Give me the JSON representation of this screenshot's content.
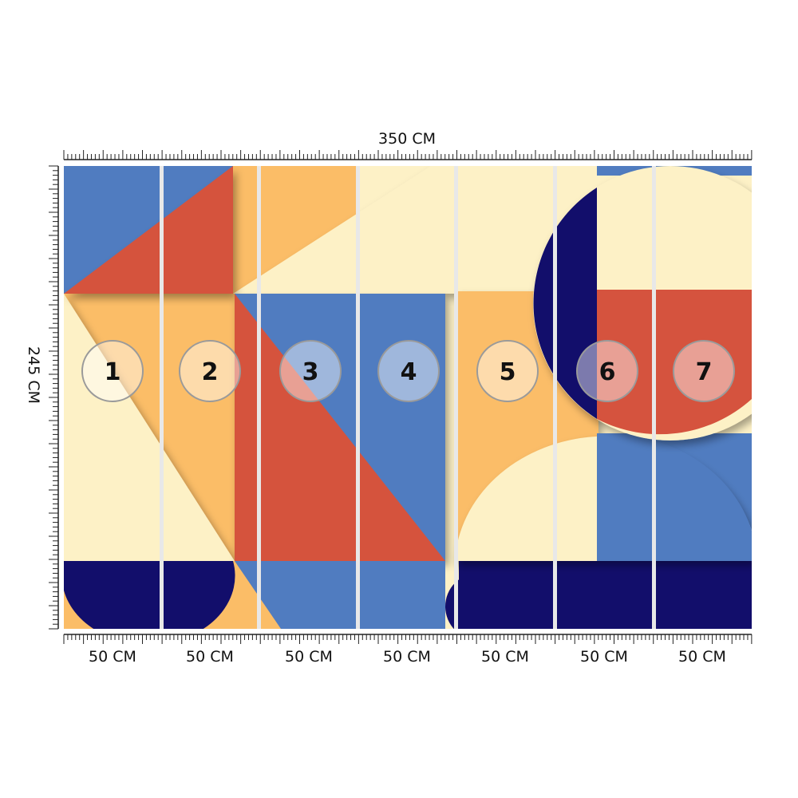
{
  "dimensions": {
    "width_label": "350 CM",
    "height_label": "245 CM",
    "panel_width_label": "50 CM"
  },
  "panels": [
    {
      "number": "1",
      "width_label": "50 CM"
    },
    {
      "number": "2",
      "width_label": "50 CM"
    },
    {
      "number": "3",
      "width_label": "50 CM"
    },
    {
      "number": "4",
      "width_label": "50 CM"
    },
    {
      "number": "5",
      "width_label": "50 CM"
    },
    {
      "number": "6",
      "width_label": "50 CM"
    },
    {
      "number": "7",
      "width_label": "50 CM"
    }
  ],
  "colors": {
    "cream": "#fdf1c6",
    "orange": "#fbbd67",
    "red": "#d5533e",
    "blue": "#507cc0",
    "navy": "#120e6b",
    "seam": "#e8e8e8"
  }
}
